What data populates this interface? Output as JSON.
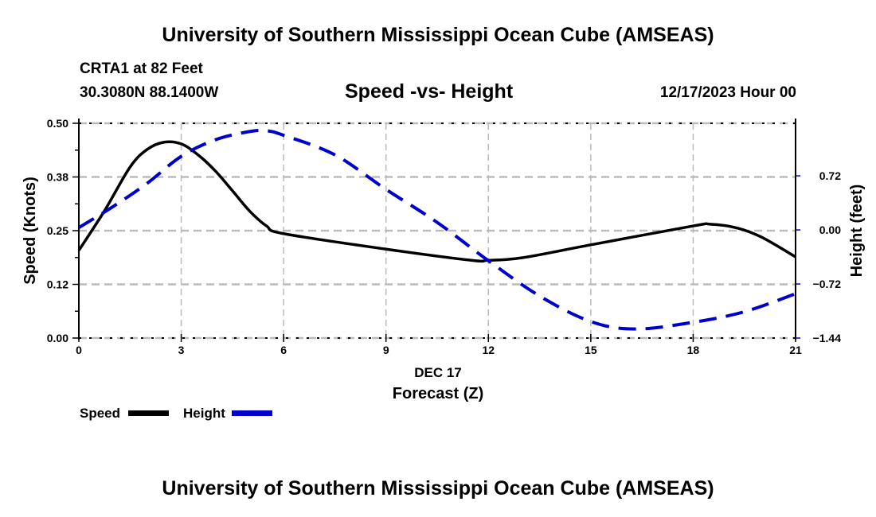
{
  "header": {
    "title": "University of Southern Mississippi Ocean Cube (AMSEAS)",
    "station": "CRTA1 at 82 Feet",
    "coordinates": "30.3080N  88.1400W",
    "subtitle": "Speed -vs- Height",
    "datetime": "12/17/2023 Hour 00"
  },
  "footer": {
    "title": "University of Southern Mississippi Ocean Cube (AMSEAS)"
  },
  "legend": {
    "speed_label": "Speed",
    "height_label": "Height"
  },
  "colors": {
    "speed": "#000000",
    "height": "#0000cc",
    "grid": "#bbbbbb"
  },
  "chart_data": {
    "type": "line",
    "title": "Speed -vs- Height",
    "xlabel": "Forecast (Z)",
    "xlabel_date": "DEC 17",
    "ylabel": "Speed (Knots)",
    "y2label": "Height (feet)",
    "xlim": [
      0,
      21
    ],
    "ylim": [
      0,
      0.5
    ],
    "y2lim": [
      -1.44,
      1.42
    ],
    "x_ticks": [
      0,
      3,
      6,
      9,
      12,
      15,
      18,
      21
    ],
    "x_tick_labels": [
      "0",
      "3",
      "6",
      "9",
      "12",
      "15",
      "18",
      "21"
    ],
    "y_ticks": [
      0.0,
      0.125,
      0.25,
      0.375,
      0.5
    ],
    "y_tick_labels": [
      "0.00",
      "0.12",
      "0.25",
      "0.38",
      "0.50"
    ],
    "y2_ticks": [
      -1.44,
      -0.72,
      0.0,
      0.72
    ],
    "y2_tick_labels": [
      "−1.44",
      "−0.72",
      "0.00",
      "0.72"
    ],
    "grid": true,
    "legend_position": "bottom-left",
    "series": [
      {
        "name": "Speed",
        "axis": "left",
        "style": "solid",
        "x": [
          0,
          0.75,
          1.5,
          2,
          2.5,
          3,
          3.5,
          4,
          4.5,
          5,
          5.5,
          6,
          9,
          11.5,
          12,
          13,
          15,
          18,
          18.5,
          19.3,
          20,
          21
        ],
        "values": [
          0.204,
          0.296,
          0.398,
          0.439,
          0.456,
          0.452,
          0.426,
          0.389,
          0.343,
          0.296,
          0.261,
          0.243,
          0.207,
          0.181,
          0.181,
          0.187,
          0.217,
          0.261,
          0.265,
          0.256,
          0.235,
          0.189
        ]
      },
      {
        "name": "Height",
        "axis": "right",
        "style": "dashed",
        "x": [
          0,
          1,
          2,
          3,
          4,
          5,
          5.5,
          6,
          7.5,
          9,
          10.5,
          12,
          13.5,
          15,
          16.3,
          18,
          19.5,
          21
        ],
        "values": [
          0.03,
          0.31,
          0.62,
          0.98,
          1.2,
          1.31,
          1.32,
          1.26,
          1.0,
          0.54,
          0.1,
          -0.41,
          -0.88,
          -1.22,
          -1.32,
          -1.23,
          -1.09,
          -0.85
        ]
      }
    ]
  }
}
